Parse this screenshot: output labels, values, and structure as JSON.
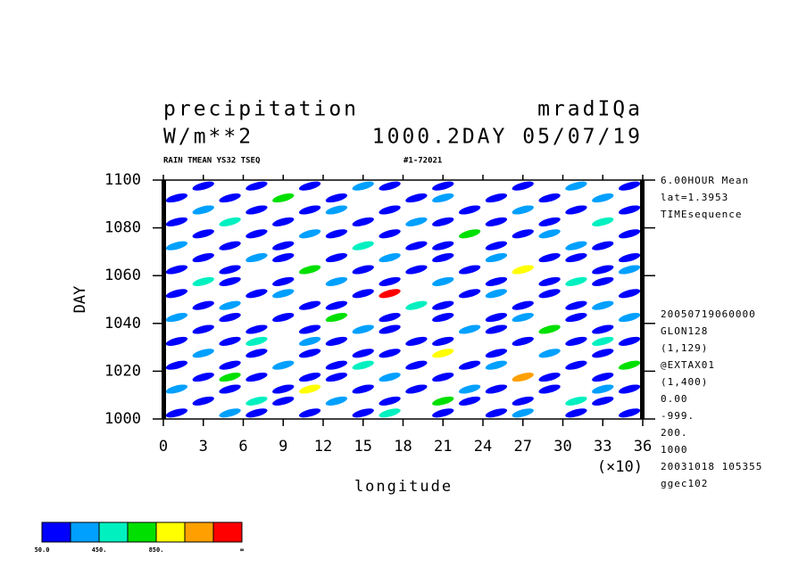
{
  "chart_data": {
    "type": "contour",
    "title": "precipitation",
    "title_right": "mradIQa",
    "subtitle": "W/m**2",
    "subtitle_right": "1000.2DAY 05/07/19",
    "caption": "RAIN TMEAN YS32 TSEQ",
    "caption_right": "#1-72021",
    "x_label": "longitude",
    "x_multiplier": "(×10)",
    "y_label": "DAY",
    "notes_top": [
      "6.00HOUR Mean",
      "lat=1.3953",
      "TIMEsequence"
    ],
    "notes_bottom": [
      "20050719060000",
      "GLON128",
      "(1,129)",
      "@EXTAX01",
      "(1,400)",
      "0.00",
      "-999.",
      "200.",
      "1000",
      "20031018 105355",
      "ggec102"
    ],
    "xlim": [
      0,
      36
    ],
    "xticks": [
      0,
      3,
      6,
      9,
      12,
      15,
      18,
      21,
      24,
      27,
      30,
      33,
      36
    ],
    "ylim": [
      1000,
      1100
    ],
    "yticks": [
      1000,
      1020,
      1040,
      1060,
      1080,
      1100
    ],
    "colorbar": {
      "levels": [
        50,
        250,
        450,
        650,
        850,
        1050,
        1250
      ],
      "colors": [
        "#0000ff",
        "#00a0ff",
        "#00f0c0",
        "#00e000",
        "#ffff00",
        "#ffa000",
        "#ff0000"
      ],
      "ticks": [
        {
          "value": 50,
          "label": "50.0"
        },
        {
          "value": 450,
          "label": "450."
        },
        {
          "value": 850,
          "label": "850."
        }
      ],
      "end_label": "∞"
    },
    "field": {
      "x": [
        1,
        3,
        5,
        7,
        9,
        11,
        13,
        15,
        17,
        19,
        21,
        23,
        25,
        27,
        29,
        31,
        33,
        35
      ],
      "y": [
        1002.5,
        1007.5,
        1012.5,
        1017.5,
        1022.5,
        1027.5,
        1032.5,
        1037.5,
        1042.5,
        1047.5,
        1052.5,
        1057.5,
        1062.5,
        1067.5,
        1072.5,
        1077.5,
        1082.5,
        1087.5,
        1092.5,
        1097.5
      ],
      "z": [
        [
          100,
          0,
          300,
          100,
          0,
          100,
          0,
          100,
          500,
          0,
          100,
          0,
          100,
          300,
          0,
          100,
          0,
          100
        ],
        [
          0,
          100,
          0,
          500,
          100,
          0,
          300,
          0,
          100,
          0,
          700,
          100,
          0,
          100,
          0,
          500,
          100,
          0
        ],
        [
          300,
          0,
          100,
          0,
          100,
          900,
          0,
          100,
          0,
          100,
          0,
          300,
          100,
          0,
          100,
          0,
          300,
          100
        ],
        [
          0,
          100,
          700,
          100,
          0,
          100,
          100,
          0,
          300,
          0,
          100,
          0,
          0,
          1100,
          100,
          0,
          100,
          0
        ],
        [
          100,
          0,
          100,
          0,
          300,
          0,
          100,
          500,
          0,
          100,
          0,
          100,
          300,
          0,
          0,
          100,
          0,
          700
        ],
        [
          0,
          300,
          0,
          100,
          0,
          100,
          0,
          100,
          100,
          0,
          900,
          0,
          100,
          0,
          300,
          0,
          100,
          0
        ],
        [
          100,
          0,
          100,
          500,
          0,
          300,
          100,
          0,
          0,
          100,
          100,
          0,
          0,
          100,
          0,
          100,
          500,
          100
        ],
        [
          0,
          100,
          0,
          100,
          0,
          100,
          0,
          300,
          100,
          0,
          0,
          300,
          100,
          0,
          700,
          0,
          100,
          0
        ],
        [
          300,
          0,
          100,
          0,
          100,
          0,
          700,
          0,
          100,
          0,
          100,
          0,
          100,
          300,
          0,
          100,
          0,
          300
        ],
        [
          0,
          100,
          300,
          0,
          0,
          100,
          100,
          0,
          0,
          500,
          100,
          0,
          0,
          100,
          0,
          100,
          300,
          0
        ],
        [
          100,
          0,
          0,
          100,
          300,
          0,
          0,
          100,
          1300,
          0,
          0,
          100,
          300,
          0,
          100,
          0,
          0,
          100
        ],
        [
          0,
          500,
          100,
          0,
          100,
          0,
          300,
          0,
          100,
          0,
          300,
          0,
          100,
          0,
          100,
          500,
          100,
          0
        ],
        [
          100,
          0,
          100,
          0,
          0,
          700,
          0,
          100,
          0,
          100,
          0,
          100,
          0,
          900,
          0,
          0,
          100,
          300
        ],
        [
          0,
          100,
          0,
          300,
          100,
          0,
          100,
          0,
          300,
          0,
          100,
          0,
          300,
          0,
          100,
          100,
          0,
          100
        ],
        [
          300,
          0,
          100,
          0,
          100,
          0,
          0,
          500,
          0,
          100,
          100,
          0,
          100,
          0,
          0,
          300,
          100,
          0
        ],
        [
          0,
          100,
          0,
          100,
          0,
          300,
          100,
          0,
          100,
          0,
          0,
          700,
          0,
          100,
          300,
          0,
          0,
          100
        ],
        [
          100,
          0,
          500,
          0,
          100,
          0,
          0,
          100,
          0,
          300,
          100,
          0,
          100,
          0,
          100,
          0,
          500,
          0
        ],
        [
          0,
          300,
          0,
          100,
          0,
          100,
          300,
          0,
          100,
          0,
          0,
          100,
          0,
          300,
          0,
          100,
          0,
          100
        ],
        [
          100,
          0,
          100,
          0,
          700,
          0,
          100,
          0,
          0,
          100,
          300,
          0,
          100,
          0,
          100,
          0,
          300,
          0
        ],
        [
          0,
          100,
          0,
          100,
          0,
          100,
          0,
          300,
          100,
          0,
          100,
          0,
          0,
          100,
          0,
          300,
          0,
          100
        ]
      ]
    }
  }
}
